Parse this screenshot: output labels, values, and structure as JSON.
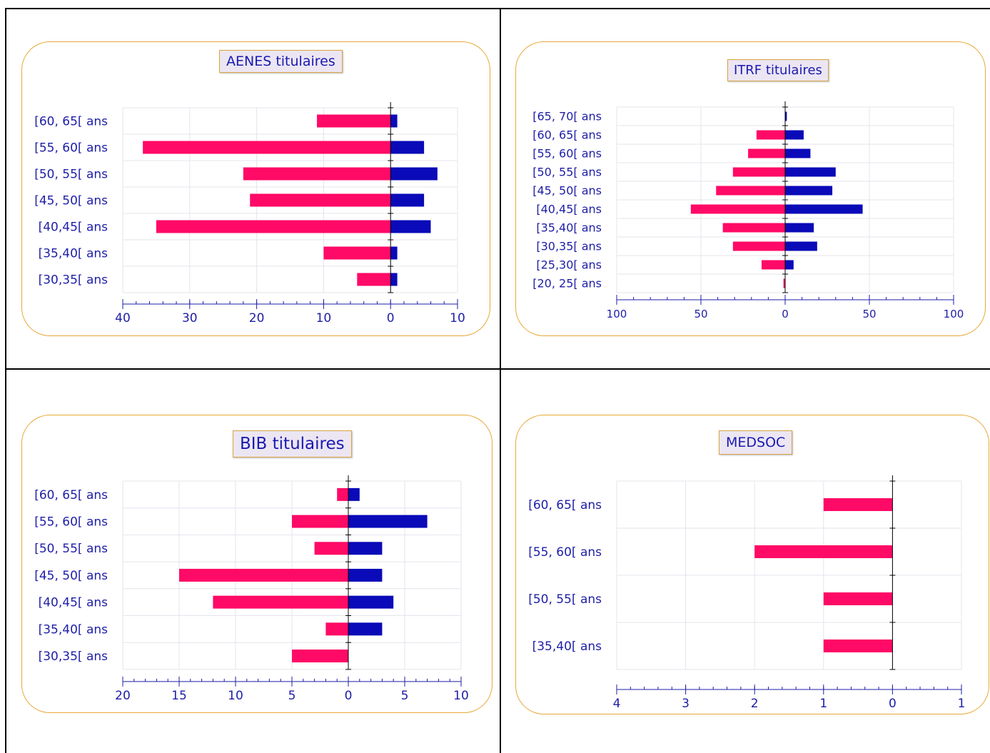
{
  "colors": {
    "female": "#ff0a66",
    "male": "#0a0ab8",
    "axis": "#1e1ea8",
    "grid": "#e4e4ee",
    "border": "#e8a838"
  },
  "chart_data": [
    {
      "type": "bar",
      "title": "AENES titulaires",
      "categories": [
        "[60, 65[ ans",
        "[55, 60[ ans",
        "[50, 55[ ans",
        "[45, 50[ ans",
        "[40,45[ ans",
        "[35,40[ ans",
        "[30,35[ ans"
      ],
      "series": [
        {
          "values": [
            -11,
            -37,
            -22,
            -21,
            -35,
            -10,
            -5
          ]
        },
        {
          "values": [
            1,
            5,
            7,
            5,
            6,
            1,
            1
          ]
        }
      ],
      "xlim": [
        -40,
        10
      ],
      "ticks": [
        -40,
        -30,
        -20,
        -10,
        0,
        10
      ],
      "tick_labels": [
        "40",
        "30",
        "20",
        "10",
        "0",
        "10"
      ],
      "minor_step": 2
    },
    {
      "type": "bar",
      "title": "ITRF titulaires",
      "categories": [
        "[65, 70[ ans",
        "[60, 65[ ans",
        "[55, 60[ ans",
        "[50, 55[ ans",
        "[45, 50[ ans",
        "[40,45[ ans",
        "[35,40[ ans",
        "[30,35[ ans",
        "[25,30[ ans",
        "[20, 25[ ans"
      ],
      "series": [
        {
          "values": [
            0,
            -17,
            -22,
            -31,
            -41,
            -56,
            -37,
            -31,
            -14,
            -1
          ]
        },
        {
          "values": [
            1,
            11,
            15,
            30,
            28,
            46,
            17,
            19,
            5,
            0
          ]
        }
      ],
      "xlim": [
        -100,
        100
      ],
      "ticks": [
        -100,
        -50,
        0,
        50,
        100
      ],
      "tick_labels": [
        "100",
        "50",
        "0",
        "50",
        "100"
      ],
      "minor_step": 10
    },
    {
      "type": "bar",
      "title": "BIB titulaires",
      "categories": [
        "[60, 65[ ans",
        "[55, 60[ ans",
        "[50, 55[ ans",
        "[45, 50[ ans",
        "[40,45[ ans",
        "[35,40[ ans",
        "[30,35[ ans"
      ],
      "series": [
        {
          "values": [
            -1,
            -5,
            -3,
            -15,
            -12,
            -2,
            -5
          ]
        },
        {
          "values": [
            1,
            7,
            3,
            3,
            4,
            3,
            0
          ]
        }
      ],
      "xlim": [
        -20,
        10
      ],
      "ticks": [
        -20,
        -15,
        -10,
        -5,
        0,
        5,
        10
      ],
      "tick_labels": [
        "20",
        "15",
        "10",
        "5",
        "0",
        "5",
        "10"
      ],
      "minor_step": 1
    },
    {
      "type": "bar",
      "title": "MEDSOC",
      "categories": [
        "[60, 65[ ans",
        "[55, 60[ ans",
        "[50, 55[ ans",
        "[35,40[ ans"
      ],
      "series": [
        {
          "values": [
            -1,
            -2,
            -1,
            -1
          ]
        },
        {
          "values": [
            0,
            0,
            0,
            0
          ]
        }
      ],
      "xlim": [
        -4,
        1
      ],
      "ticks": [
        -4,
        -3,
        -2,
        -1,
        0,
        1
      ],
      "tick_labels": [
        "4",
        "3",
        "2",
        "1",
        "0",
        "1"
      ],
      "minor_step": 0.2
    }
  ]
}
